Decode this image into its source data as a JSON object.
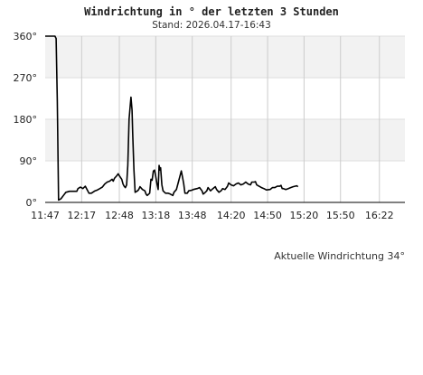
{
  "chart_data": {
    "type": "line",
    "title": "Windrichtung in ° der letzten 3 Stunden",
    "subtitle": "Stand: 2026.04.17-16:43",
    "ylim": [
      0,
      360
    ],
    "y_ticks": [
      {
        "value": 0,
        "label": "0°"
      },
      {
        "value": 90,
        "label": "90°"
      },
      {
        "value": 180,
        "label": "180°"
      },
      {
        "value": 270,
        "label": "270°"
      },
      {
        "value": 360,
        "label": "360°"
      }
    ],
    "xlim": [
      "11:47",
      "16:43"
    ],
    "x_ticks": [
      "11:47",
      "12:17",
      "12:48",
      "13:18",
      "13:48",
      "14:20",
      "14:50",
      "15:20",
      "15:50",
      "16:22"
    ],
    "series": [
      {
        "values": [
          [
            0,
            360
          ],
          [
            5,
            360
          ],
          [
            8,
            360
          ],
          [
            9,
            355
          ],
          [
            10,
            220
          ],
          [
            11,
            5
          ],
          [
            13,
            8
          ],
          [
            15,
            15
          ],
          [
            17,
            22
          ],
          [
            20,
            24
          ],
          [
            24,
            24
          ],
          [
            26,
            24
          ],
          [
            27,
            30
          ],
          [
            29,
            33
          ],
          [
            31,
            30
          ],
          [
            33,
            35
          ],
          [
            35,
            25
          ],
          [
            36,
            20
          ],
          [
            38,
            20
          ],
          [
            41,
            25
          ],
          [
            43,
            27
          ],
          [
            45,
            30
          ],
          [
            47,
            33
          ],
          [
            49,
            40
          ],
          [
            51,
            44
          ],
          [
            53,
            46
          ],
          [
            55,
            50
          ],
          [
            56,
            46
          ],
          [
            57,
            52
          ],
          [
            59,
            58
          ],
          [
            60,
            62
          ],
          [
            61,
            58
          ],
          [
            63,
            50
          ],
          [
            64,
            40
          ],
          [
            65,
            35
          ],
          [
            66,
            32
          ],
          [
            67,
            38
          ],
          [
            68,
            80
          ],
          [
            69,
            180
          ],
          [
            70,
            210
          ],
          [
            70.6,
            228
          ],
          [
            71.5,
            200
          ],
          [
            72,
            150
          ],
          [
            73,
            70
          ],
          [
            74,
            22
          ],
          [
            76,
            25
          ],
          [
            77,
            28
          ],
          [
            78,
            34
          ],
          [
            80,
            28
          ],
          [
            82,
            25
          ],
          [
            83,
            18
          ],
          [
            84,
            15
          ],
          [
            86,
            20
          ],
          [
            87,
            50
          ],
          [
            88,
            48
          ],
          [
            89,
            68
          ],
          [
            90,
            70
          ],
          [
            91,
            55
          ],
          [
            92,
            40
          ],
          [
            93,
            28
          ],
          [
            93.7,
            80
          ],
          [
            94.5,
            70
          ],
          [
            95,
            75
          ],
          [
            96,
            38
          ],
          [
            97,
            25
          ],
          [
            99,
            20
          ],
          [
            101,
            20
          ],
          [
            103,
            18
          ],
          [
            105,
            15
          ],
          [
            106,
            22
          ],
          [
            108,
            28
          ],
          [
            110,
            48
          ],
          [
            112,
            68
          ],
          [
            113,
            55
          ],
          [
            114,
            40
          ],
          [
            115,
            20
          ],
          [
            117,
            20
          ],
          [
            118,
            25
          ],
          [
            120,
            26
          ],
          [
            122,
            28
          ],
          [
            125,
            30
          ],
          [
            127,
            32
          ],
          [
            129,
            25
          ],
          [
            130,
            18
          ],
          [
            131,
            20
          ],
          [
            133,
            25
          ],
          [
            134,
            32
          ],
          [
            136,
            25
          ],
          [
            138,
            30
          ],
          [
            140,
            34
          ],
          [
            141,
            28
          ],
          [
            143,
            22
          ],
          [
            145,
            26
          ],
          [
            146,
            30
          ],
          [
            148,
            28
          ],
          [
            150,
            35
          ],
          [
            151,
            42
          ],
          [
            153,
            38
          ],
          [
            155,
            36
          ],
          [
            157,
            40
          ],
          [
            159,
            42
          ],
          [
            161,
            38
          ],
          [
            163,
            40
          ],
          [
            165,
            44
          ],
          [
            167,
            40
          ],
          [
            169,
            38
          ],
          [
            170,
            44
          ],
          [
            172,
            44
          ],
          [
            173,
            45
          ],
          [
            174,
            38
          ],
          [
            176,
            35
          ],
          [
            178,
            32
          ],
          [
            180,
            30
          ],
          [
            182,
            27
          ],
          [
            185,
            28
          ],
          [
            187,
            32
          ],
          [
            189,
            32
          ],
          [
            191,
            35
          ],
          [
            193,
            35
          ],
          [
            194,
            37
          ],
          [
            195,
            30
          ],
          [
            196,
            30
          ],
          [
            198,
            28
          ],
          [
            200,
            30
          ],
          [
            202,
            32
          ],
          [
            204,
            34
          ],
          [
            207,
            36
          ],
          [
            208,
            34
          ]
        ]
      }
    ],
    "grid": true,
    "annotation": "Aktuelle Windrichtung 34°"
  }
}
